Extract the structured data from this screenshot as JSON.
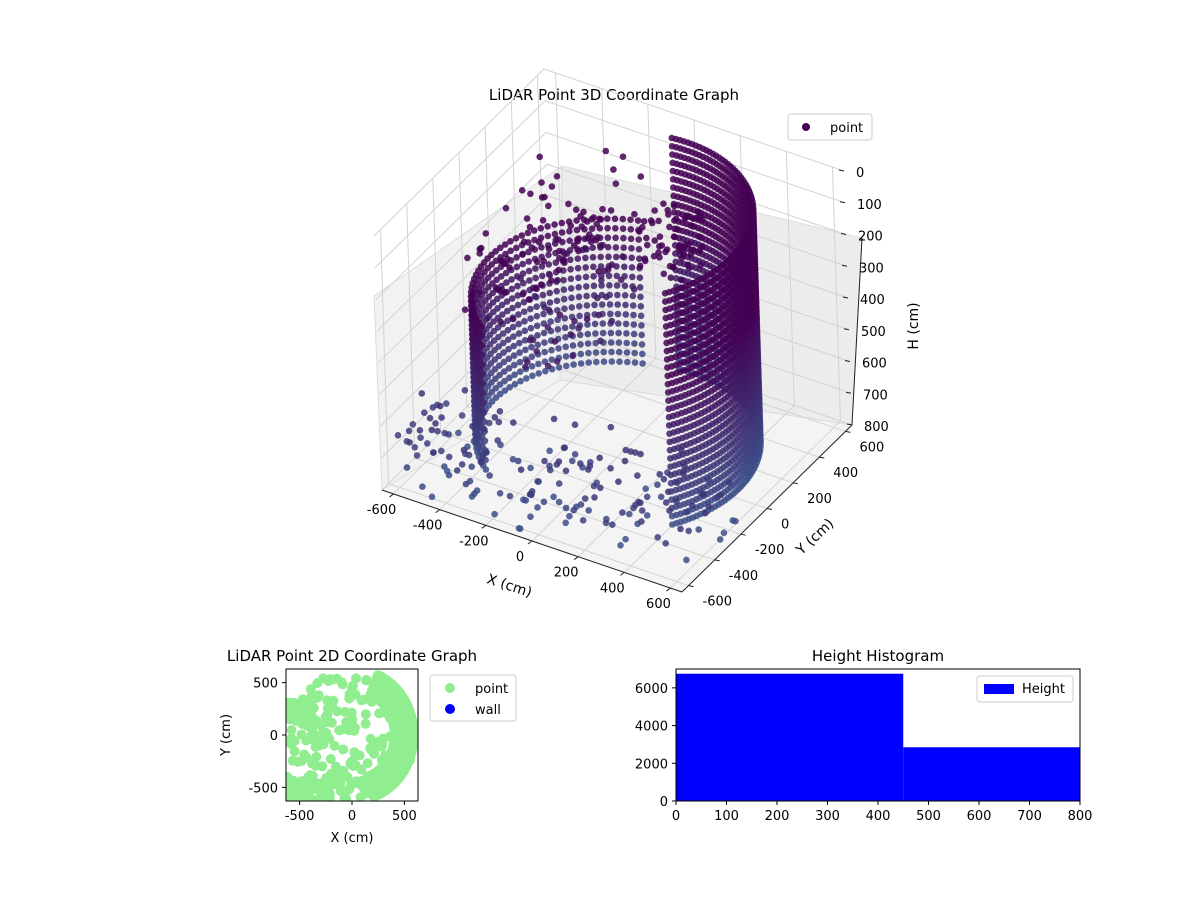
{
  "chart_data": [
    {
      "type": "scatter",
      "title": "LiDAR Point 3D Coordinate Graph",
      "xlabel": "X (cm)",
      "ylabel": "Y (cm)",
      "zlabel": "H (cm)",
      "xlim": [
        -650,
        650
      ],
      "ylim": [
        -650,
        650
      ],
      "zlim": [
        800,
        0
      ],
      "x_ticks": [
        "-600",
        "-400",
        "-200",
        "0",
        "200",
        "400",
        "600"
      ],
      "y_ticks": [
        "-600",
        "-400",
        "-200",
        "0",
        "200",
        "400",
        "600"
      ],
      "z_ticks": [
        "0",
        "100",
        "200",
        "300",
        "400",
        "500",
        "600",
        "700",
        "800"
      ],
      "legend": {
        "placement": "top-right",
        "entries": [
          "point"
        ]
      },
      "series": [
        {
          "name": "point",
          "colormap": "viridis"
        }
      ]
    },
    {
      "type": "scatter",
      "title": "LiDAR Point 2D Coordinate Graph",
      "xlabel": "X (cm)",
      "ylabel": "Y (cm)",
      "xlim": [
        -630,
        630
      ],
      "ylim": [
        -630,
        630
      ],
      "x_ticks": [
        "-500",
        "0",
        "500"
      ],
      "y_ticks": [
        "500",
        "0",
        "-500"
      ],
      "legend": {
        "placement": "outside-right",
        "entries": [
          "point",
          "wall"
        ]
      },
      "series": [
        {
          "name": "point",
          "color": "#90ee90"
        },
        {
          "name": "wall",
          "color": "#0000ff"
        }
      ]
    },
    {
      "type": "bar",
      "title": "Height Histogram",
      "xlim": [
        0,
        800
      ],
      "ylim": [
        0,
        7000
      ],
      "x_ticks": [
        "0",
        "100",
        "200",
        "300",
        "400",
        "500",
        "600",
        "700",
        "800"
      ],
      "y_ticks": [
        "0",
        "2000",
        "4000",
        "6000"
      ],
      "bins": [
        {
          "start": 0,
          "end": 450,
          "count": 6750
        },
        {
          "start": 450,
          "end": 800,
          "count": 2850
        }
      ],
      "legend": {
        "placement": "top-right",
        "entries": [
          "Height"
        ]
      },
      "series": [
        {
          "name": "Height",
          "color": "#0000ff"
        }
      ]
    }
  ]
}
